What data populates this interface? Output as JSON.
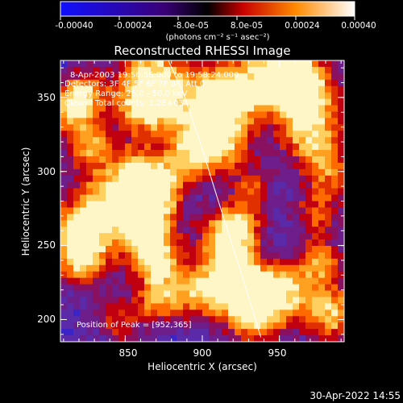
{
  "colorbar": {
    "tick_labels": [
      "-0.00040",
      "-0.00024",
      "-8.0e-05",
      "8.0e-05",
      "0.00024",
      "0.00040"
    ],
    "tick_values": [
      -0.0004,
      -0.00024,
      -8e-05,
      8e-05,
      0.00024,
      0.0004
    ],
    "range": [
      -0.0004,
      0.0004
    ],
    "units_label": "(photons cm⁻² s⁻¹ asec⁻²)",
    "colors": [
      "#1010ff",
      "#000000",
      "#e00000",
      "#ff8a00",
      "#ffffff"
    ]
  },
  "chart_data": {
    "type": "heatmap",
    "title": "Reconstructed RHESSI Image",
    "xlabel": "Heliocentric X (arcsec)",
    "ylabel": "Heliocentric Y (arcsec)",
    "xlim": [
      808,
      992
    ],
    "ylim": [
      185,
      375
    ],
    "xticks": [
      850,
      900,
      950
    ],
    "yticks": [
      200,
      250,
      300,
      350
    ],
    "xtick_labels": [
      "850",
      "900",
      "950"
    ],
    "ytick_labels": [
      "200",
      "250",
      "300",
      "350"
    ],
    "annotations": [
      "8-Apr-2003 19:56:56.000 to 19:58:24.000",
      "Detectors: 3F 4F 5F 6F 7F 8F, Att 0",
      "Energy Range: 25.0 - 50.0 keV",
      "Clean",
      "Total counts: 1.2E+03"
    ],
    "peak_label": "Position of Peak = [952,365]",
    "peak_position": [
      952,
      365
    ],
    "limb_curve": {
      "x": [
        878,
        888,
        898,
        908,
        918,
        928,
        938
      ],
      "y": [
        375,
        352,
        322,
        288,
        255,
        222,
        188
      ]
    }
  },
  "footer": {
    "timestamp": "30-Apr-2022 14:55"
  }
}
